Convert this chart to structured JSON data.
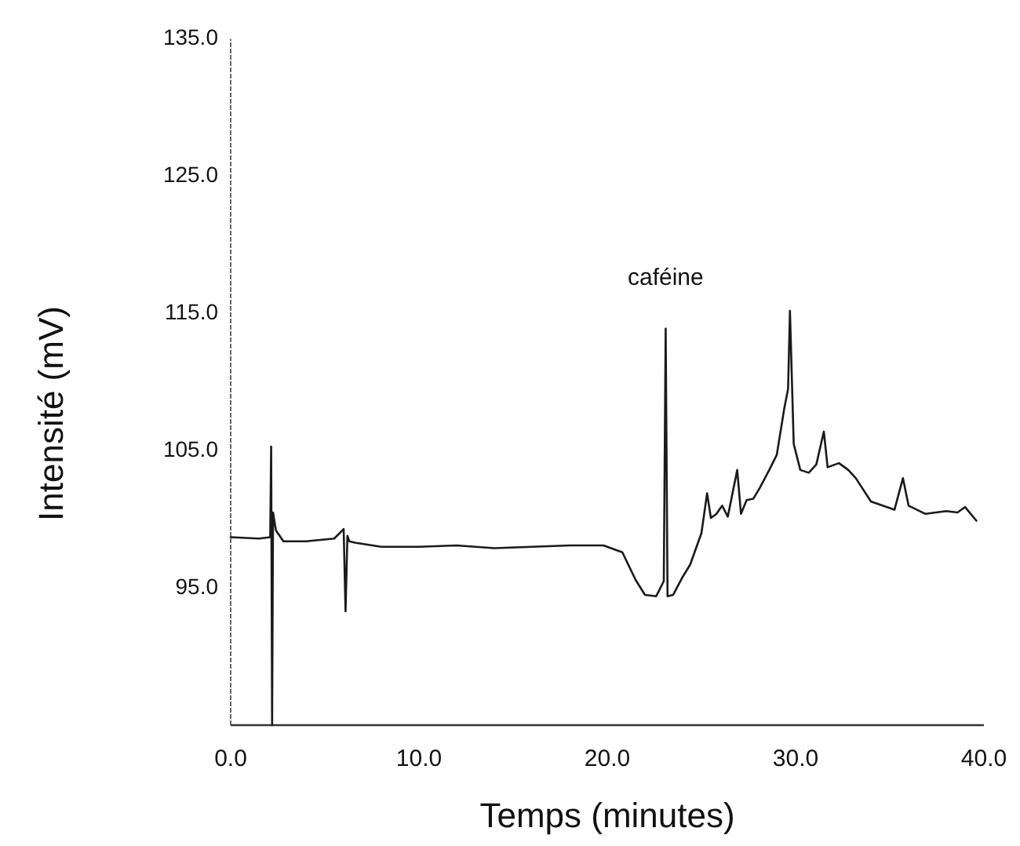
{
  "chart_data": {
    "type": "line",
    "xlabel": "Temps (minutes)",
    "ylabel": "Intensité (mV)",
    "xlim": [
      0,
      40
    ],
    "ylim": [
      85,
      135
    ],
    "xticks": [
      {
        "value": 0,
        "label": "0.0"
      },
      {
        "value": 10,
        "label": "10.0"
      },
      {
        "value": 20,
        "label": "20.0"
      },
      {
        "value": 30,
        "label": "30.0"
      },
      {
        "value": 40,
        "label": "40.0"
      }
    ],
    "yticks": [
      {
        "value": 95,
        "label": "95.0"
      },
      {
        "value": 105,
        "label": "105.0"
      },
      {
        "value": 115,
        "label": "115.0"
      },
      {
        "value": 125,
        "label": "125.0"
      },
      {
        "value": 135,
        "label": "135.0"
      }
    ],
    "grid": false,
    "marker": "none",
    "line_style": "solid",
    "annotations": [
      {
        "text": "caféine",
        "x": 23.1,
        "y": 113.9
      }
    ],
    "series": [
      {
        "color": "#1a1a1a",
        "x": [
          0,
          1.5,
          2.1,
          2.15,
          2.2,
          2.25,
          2.4,
          2.8,
          4,
          5.5,
          6.0,
          6.1,
          6.2,
          6.3,
          6.6,
          8,
          10,
          12,
          14,
          16,
          18,
          19.8,
          20.8,
          21.5,
          22.0,
          22.6,
          23.0,
          23.1,
          23.2,
          23.5,
          24.0,
          24.4,
          25.0,
          25.3,
          25.5,
          25.8,
          26.1,
          26.4,
          26.9,
          27.1,
          27.4,
          27.75,
          28.1,
          28.6,
          29.0,
          29.4,
          29.6,
          29.7,
          29.9,
          30.25,
          30.7,
          31.1,
          31.5,
          31.7,
          32.3,
          32.8,
          33.2,
          34.0,
          35.25,
          35.7,
          36.0,
          36.9,
          38.0,
          38.6,
          39.0,
          39.6
        ],
        "values": [
          98.7,
          98.6,
          98.7,
          105.3,
          85,
          100.5,
          99.2,
          98.4,
          98.4,
          98.6,
          99.3,
          93.3,
          98.8,
          98.4,
          98.3,
          98.0,
          98.0,
          98.1,
          97.9,
          98.0,
          98.1,
          98.1,
          97.6,
          95.6,
          94.5,
          94.4,
          95.5,
          113.9,
          94.4,
          94.5,
          95.8,
          96.7,
          99.0,
          101.9,
          100.1,
          100.4,
          101.0,
          100.2,
          103.6,
          100.4,
          101.4,
          101.5,
          102.3,
          103.6,
          104.7,
          108.1,
          109.5,
          115.2,
          105.5,
          103.6,
          103.4,
          104.0,
          106.4,
          103.8,
          104.1,
          103.6,
          103.0,
          101.3,
          100.7,
          103.0,
          101.0,
          100.4,
          100.6,
          100.5,
          100.9,
          99.9
        ]
      }
    ]
  }
}
